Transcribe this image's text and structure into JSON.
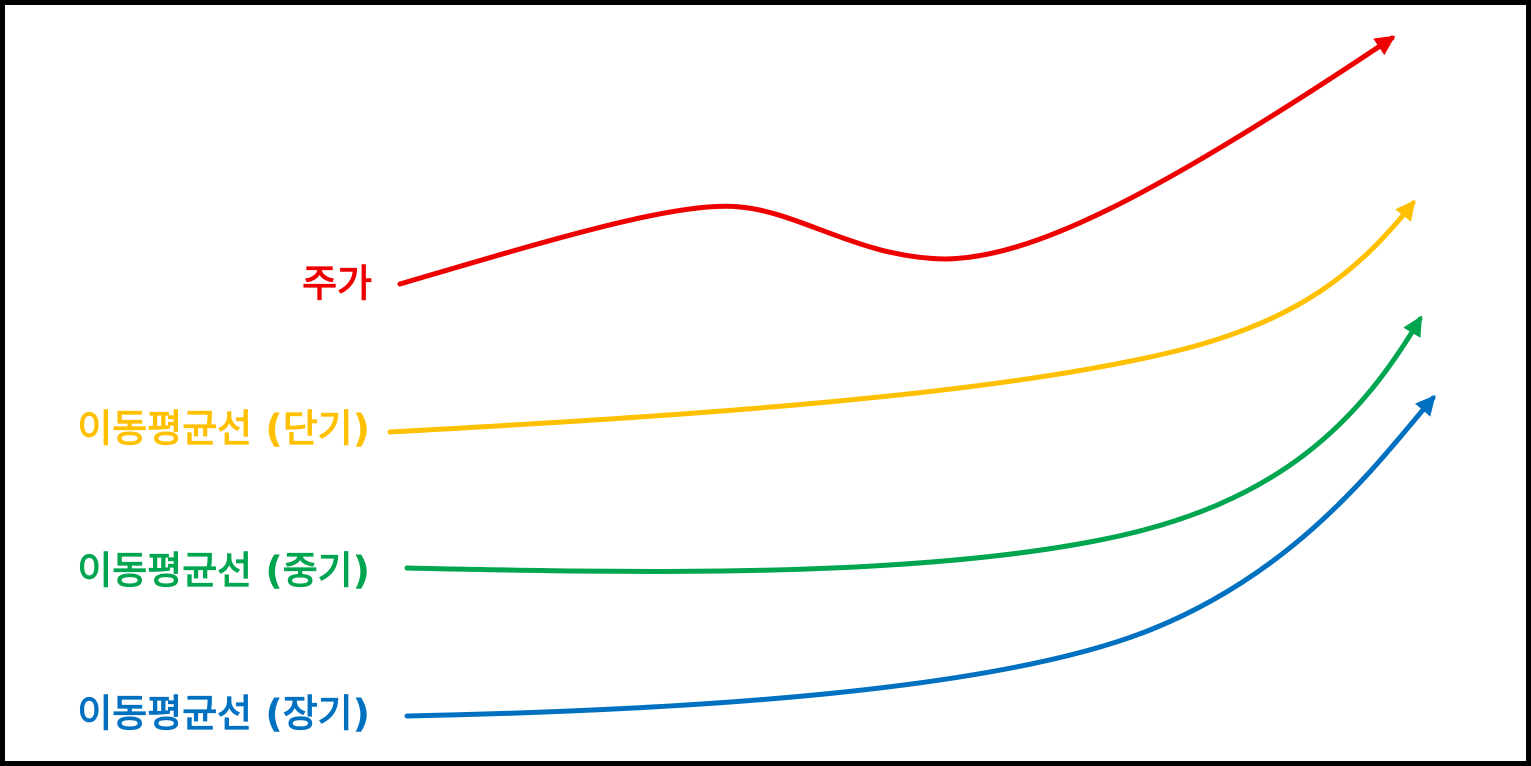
{
  "lines": [
    {
      "label": "주가"
    },
    {
      "label": "이동평균선 (단기)"
    },
    {
      "label": "이동평균선 (중기)"
    },
    {
      "label": "이동평균선 (장기)"
    }
  ]
}
